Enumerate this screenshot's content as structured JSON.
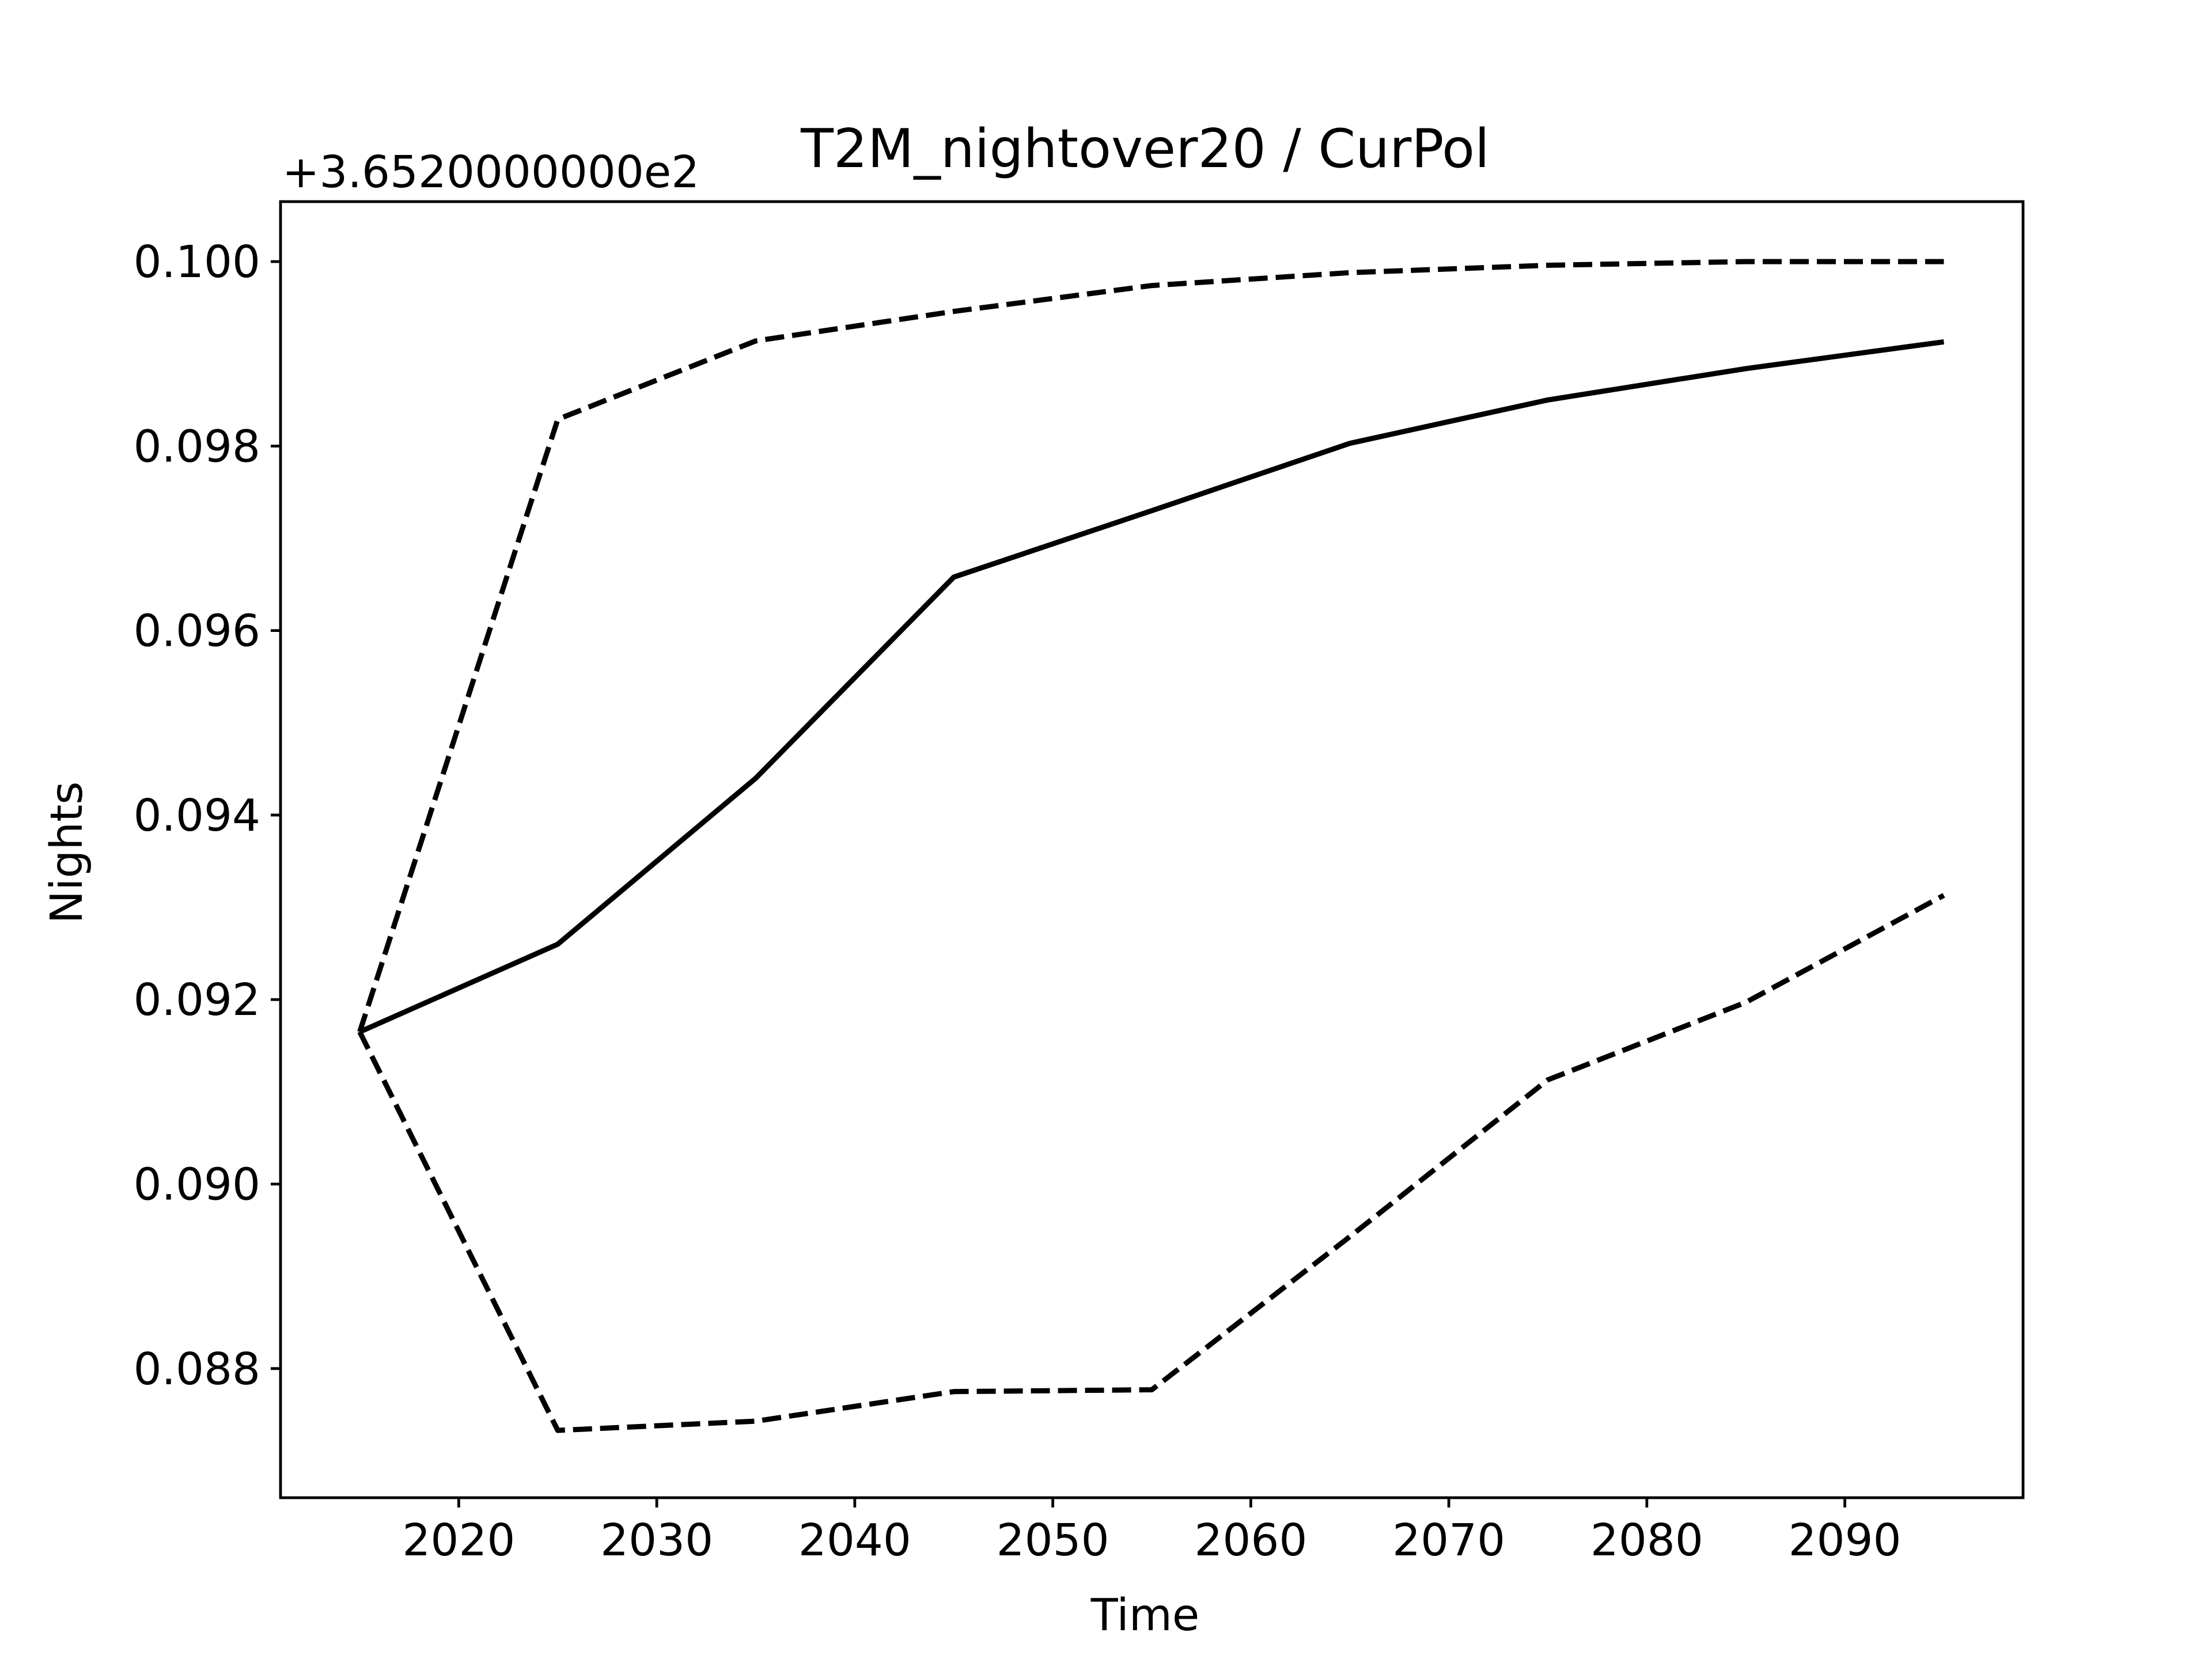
{
  "chart_data": {
    "type": "line",
    "title": "T2M_nightover20 / CurPol",
    "xlabel": "Time",
    "ylabel": "Nights",
    "y_offset_text": "+3.6520000000e2",
    "x_ticks": [
      2020,
      2030,
      2040,
      2050,
      2060,
      2070,
      2080,
      2090
    ],
    "y_ticks": [
      "0.088",
      "0.090",
      "0.092",
      "0.094",
      "0.096",
      "0.098",
      "0.100"
    ],
    "xlim": [
      2011.0,
      2099.0
    ],
    "ylim": [
      0.0866,
      0.10065
    ],
    "grid": false,
    "x": [
      2015,
      2025,
      2035,
      2045,
      2055,
      2065,
      2075,
      2085,
      2095
    ],
    "series": [
      {
        "style": "solid",
        "color": "#000000",
        "values": [
          0.09165,
          0.0926,
          0.0944,
          0.09658,
          0.0973,
          0.09803,
          0.0985,
          0.09884,
          0.09913
        ]
      },
      {
        "style": "dashed",
        "color": "#000000",
        "values": [
          0.09165,
          0.09829,
          0.09914,
          0.09946,
          0.09974,
          0.09988,
          0.09996,
          0.1,
          0.1
        ]
      },
      {
        "style": "dashed",
        "color": "#000000",
        "values": [
          0.09165,
          0.08733,
          0.08743,
          0.08775,
          0.08777,
          0.08943,
          0.09113,
          0.09197,
          0.09313
        ]
      }
    ]
  }
}
